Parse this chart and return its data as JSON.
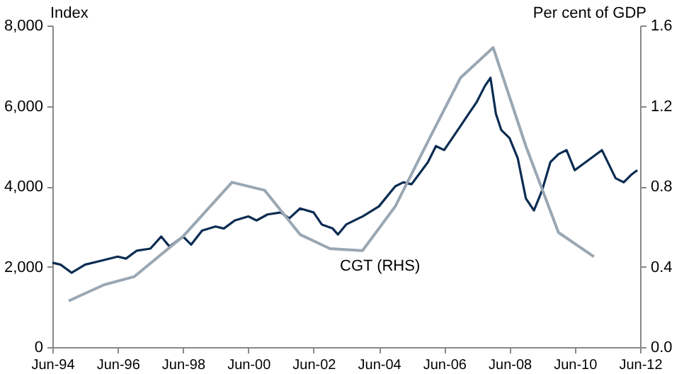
{
  "chart_data": {
    "type": "line",
    "ylabel": "Index",
    "y2label": "Per cent of GDP",
    "xlim": [
      "1994-06",
      "2012-06"
    ],
    "xticks": [
      {
        "value": "1994-06",
        "label": "Jun-94"
      },
      {
        "value": "1996-06",
        "label": "Jun-96"
      },
      {
        "value": "1998-06",
        "label": "Jun-98"
      },
      {
        "value": "2000-06",
        "label": "Jun-00"
      },
      {
        "value": "2002-06",
        "label": "Jun-02"
      },
      {
        "value": "2004-06",
        "label": "Jun-04"
      },
      {
        "value": "2006-06",
        "label": "Jun-06"
      },
      {
        "value": "2008-06",
        "label": "Jun-08"
      },
      {
        "value": "2010-06",
        "label": "Jun-10"
      },
      {
        "value": "2012-06",
        "label": "Jun-12"
      }
    ],
    "ylim": [
      0,
      8000
    ],
    "yticks": [
      0,
      {
        "value": 2000,
        "label": "2,000"
      },
      {
        "value": 4000,
        "label": "4,000"
      },
      {
        "value": 6000,
        "label": "6,000"
      },
      {
        "value": 8000,
        "label": "8,000"
      }
    ],
    "y2lim": [
      0,
      1.6
    ],
    "y2ticks": [
      {
        "value": 0,
        "label": "0.0"
      },
      0.4,
      0.8,
      1.2,
      1.6
    ],
    "grid": false,
    "series": [
      {
        "color": "#0b2c52",
        "x": [
          "1994-06",
          "1994-09",
          "1995-01",
          "1995-06",
          "1995-12",
          "1996-06",
          "1996-09",
          "1997-01",
          "1997-06",
          "1997-10",
          "1998-01",
          "1998-06",
          "1998-09",
          "1999-01",
          "1999-06",
          "1999-09",
          "2000-01",
          "2000-06",
          "2000-09",
          "2001-01",
          "2001-06",
          "2001-09",
          "2002-01",
          "2002-06",
          "2002-09",
          "2003-01",
          "2003-03",
          "2003-06",
          "2003-12",
          "2004-06",
          "2004-12",
          "2005-03",
          "2005-06",
          "2005-12",
          "2006-03",
          "2006-06",
          "2006-12",
          "2007-03",
          "2007-06",
          "2007-09",
          "2007-11",
          "2008-01",
          "2008-03",
          "2008-06",
          "2008-09",
          "2008-12",
          "2009-03",
          "2009-06",
          "2009-09",
          "2009-12",
          "2010-03",
          "2010-06",
          "2010-12",
          "2011-04",
          "2011-09",
          "2011-12",
          "2012-03",
          "2012-05"
        ],
        "values": [
          2100,
          2050,
          1850,
          2050,
          2150,
          2250,
          2200,
          2400,
          2450,
          2750,
          2500,
          2750,
          2550,
          2900,
          3000,
          2950,
          3150,
          3250,
          3150,
          3300,
          3350,
          3200,
          3450,
          3350,
          3050,
          2950,
          2800,
          3050,
          3250,
          3500,
          4000,
          4100,
          4050,
          4600,
          5000,
          4900,
          5500,
          5800,
          6100,
          6500,
          6700,
          5800,
          5400,
          5200,
          4700,
          3700,
          3400,
          3900,
          4600,
          4800,
          4900,
          4400,
          4700,
          4900,
          4200,
          4100,
          4300,
          4400
        ]
      },
      {
        "name": "CGT (RHS)",
        "color": "#9aa7b3",
        "axis": "y2",
        "x": [
          "1994-12",
          "1996-01",
          "1996-12",
          "1998-06",
          "1999-12",
          "2000-12",
          "2002-01",
          "2002-12",
          "2003-12",
          "2004-12",
          "2006-01",
          "2006-12",
          "2007-12",
          "2008-12",
          "2009-12",
          "2011-01"
        ],
        "values": [
          0.23,
          0.31,
          0.35,
          0.55,
          0.82,
          0.78,
          0.56,
          0.49,
          0.48,
          0.7,
          1.05,
          1.34,
          1.49,
          1.0,
          0.57,
          0.45
        ]
      }
    ]
  }
}
